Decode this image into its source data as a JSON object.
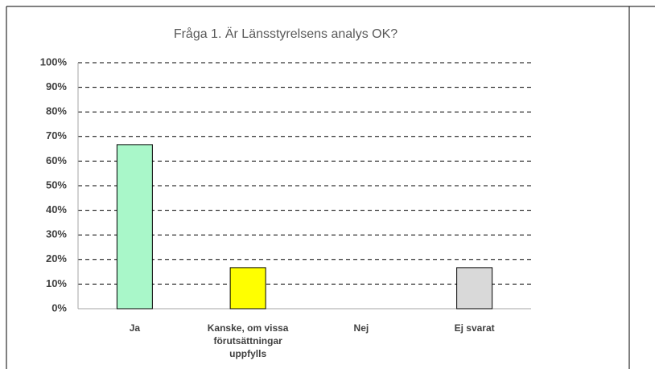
{
  "chart_data": {
    "type": "bar",
    "title": "Fråga 1. Är Länsstyrelsens analys OK?",
    "categories": [
      "Ja",
      "Kanske, om vissa förutsättningar uppfylls",
      "Nej",
      "Ej svarat"
    ],
    "values": [
      66.7,
      16.7,
      0,
      16.7
    ],
    "colors": [
      "#a9f7c9",
      "#ffff00",
      "#a9f7c9",
      "#d9d9d9"
    ],
    "ylim": [
      0,
      100
    ],
    "yticks": [
      {
        "value": 0,
        "label": "0%"
      },
      {
        "value": 10,
        "label": "10%"
      },
      {
        "value": 20,
        "label": "20%"
      },
      {
        "value": 30,
        "label": "30%"
      },
      {
        "value": 40,
        "label": "40%"
      },
      {
        "value": 50,
        "label": "50%"
      },
      {
        "value": 60,
        "label": "60%"
      },
      {
        "value": 70,
        "label": "70%"
      },
      {
        "value": 80,
        "label": "80%"
      },
      {
        "value": 90,
        "label": "90%"
      },
      {
        "value": 100,
        "label": "100%"
      }
    ],
    "grid": true
  }
}
